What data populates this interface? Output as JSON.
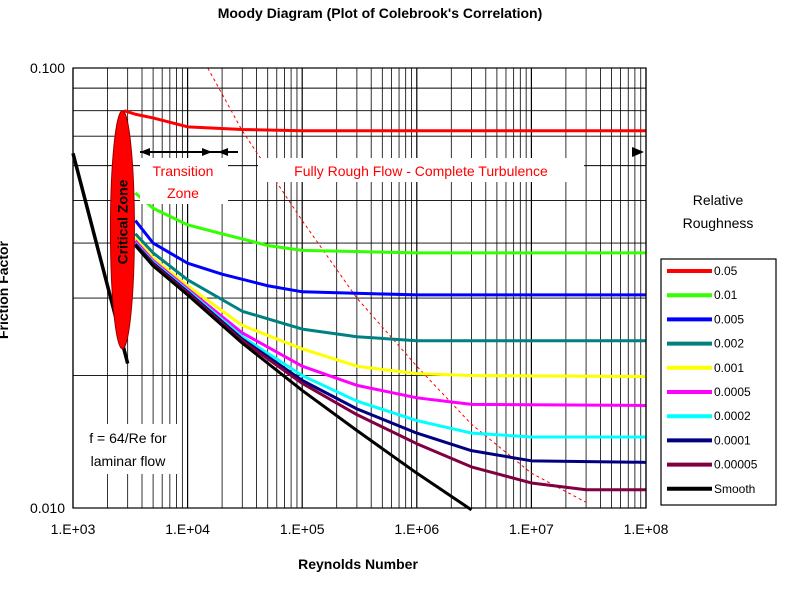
{
  "chart_data": {
    "type": "line",
    "title": "Moody Diagram (Plot of Colebrook's Correlation)",
    "xlabel": "Reynolds Number",
    "ylabel": "Friction Factor",
    "x_scale": "log",
    "y_scale": "log",
    "xlim": [
      1000,
      100000000
    ],
    "ylim": [
      0.01,
      0.1
    ],
    "x_tick_labels": [
      "1.E+03",
      "1.E+04",
      "1.E+05",
      "1.E+06",
      "1.E+07",
      "1.E+08"
    ],
    "y_tick_labels": [
      "0.010",
      "0.100"
    ],
    "grid": true,
    "legend": {
      "title_line1": "Relative",
      "title_line2": "Roughness",
      "placement": "right"
    },
    "annotations": {
      "critical_zone": "Critical Zone",
      "transition_line1": "Transition",
      "transition_line2": "Zone",
      "fully_rough": "Fully Rough Flow - Complete Turbulence",
      "laminar_line1": "f = 64/Re for",
      "laminar_line2": "laminar flow"
    },
    "colors": {
      "red": "#ff0000",
      "axis": "#000000",
      "critical_zone_fill": "#ff0000"
    },
    "laminar": {
      "name": "f = 64/Re",
      "x": [
        1000,
        2000,
        3000
      ],
      "y": [
        0.064,
        0.032,
        0.0213
      ]
    },
    "series": [
      {
        "name": "0.05",
        "color": "#ff0000",
        "x": [
          2800,
          3500,
          5000,
          10000,
          30000,
          100000,
          1000000,
          100000000
        ],
        "y": [
          0.08,
          0.0785,
          0.077,
          0.0735,
          0.0725,
          0.072,
          0.072,
          0.072
        ]
      },
      {
        "name": "0.01",
        "color": "#33ff00",
        "x": [
          3500,
          5000,
          10000,
          20000,
          50000,
          100000,
          1000000,
          100000000
        ],
        "y": [
          0.052,
          0.048,
          0.044,
          0.042,
          0.0395,
          0.0385,
          0.038,
          0.038
        ]
      },
      {
        "name": "0.005",
        "color": "#0000ff",
        "x": [
          3500,
          5000,
          10000,
          20000,
          50000,
          100000,
          1000000,
          100000000
        ],
        "y": [
          0.045,
          0.04,
          0.036,
          0.034,
          0.032,
          0.031,
          0.0305,
          0.0305
        ]
      },
      {
        "name": "0.002",
        "color": "#008080",
        "x": [
          3500,
          5000,
          10000,
          30000,
          100000,
          300000,
          1000000,
          100000000
        ],
        "y": [
          0.042,
          0.038,
          0.033,
          0.028,
          0.0255,
          0.0245,
          0.024,
          0.024
        ]
      },
      {
        "name": "0.001",
        "color": "#ffff00",
        "x": [
          3500,
          5000,
          10000,
          30000,
          100000,
          300000,
          1000000,
          3000000,
          100000000
        ],
        "y": [
          0.041,
          0.037,
          0.032,
          0.026,
          0.023,
          0.021,
          0.0202,
          0.02,
          0.0199
        ]
      },
      {
        "name": "0.0005",
        "color": "#ff00ff",
        "x": [
          3500,
          5000,
          10000,
          30000,
          100000,
          300000,
          1000000,
          3000000,
          100000000
        ],
        "y": [
          0.0405,
          0.0365,
          0.0315,
          0.025,
          0.021,
          0.019,
          0.0178,
          0.0172,
          0.0171
        ]
      },
      {
        "name": "0.0002",
        "color": "#00ffff",
        "x": [
          3500,
          5000,
          10000,
          30000,
          100000,
          300000,
          1000000,
          3000000,
          10000000,
          100000000
        ],
        "y": [
          0.04,
          0.0362,
          0.0312,
          0.0245,
          0.02,
          0.0175,
          0.0158,
          0.0148,
          0.0145,
          0.0145
        ]
      },
      {
        "name": "0.0001",
        "color": "#000080",
        "x": [
          3500,
          5000,
          10000,
          30000,
          100000,
          300000,
          1000000,
          3000000,
          10000000,
          100000000
        ],
        "y": [
          0.0398,
          0.036,
          0.031,
          0.0242,
          0.0195,
          0.0168,
          0.0148,
          0.0135,
          0.0128,
          0.0127
        ]
      },
      {
        "name": "0.00005",
        "color": "#800040",
        "x": [
          3500,
          5000,
          10000,
          30000,
          100000,
          300000,
          1000000,
          3000000,
          10000000,
          30000000,
          100000000
        ],
        "y": [
          0.0396,
          0.0358,
          0.0308,
          0.024,
          0.0192,
          0.0163,
          0.014,
          0.0124,
          0.0114,
          0.011,
          0.011
        ]
      },
      {
        "name": "Smooth",
        "color": "#000000",
        "x": [
          3500,
          5000,
          10000,
          30000,
          100000,
          300000,
          1000000,
          3000000
        ],
        "y": [
          0.0395,
          0.0355,
          0.0305,
          0.0237,
          0.0185,
          0.015,
          0.012,
          0.0099
        ]
      }
    ],
    "complete_turbulence_boundary": {
      "name": "complete turbulence boundary",
      "color": "#ff0000",
      "x": [
        15000,
        30000,
        100000,
        300000,
        1000000,
        3000000,
        10000000,
        30000000
      ],
      "y": [
        0.1,
        0.072,
        0.045,
        0.03,
        0.021,
        0.0155,
        0.012,
        0.0103
      ]
    }
  }
}
